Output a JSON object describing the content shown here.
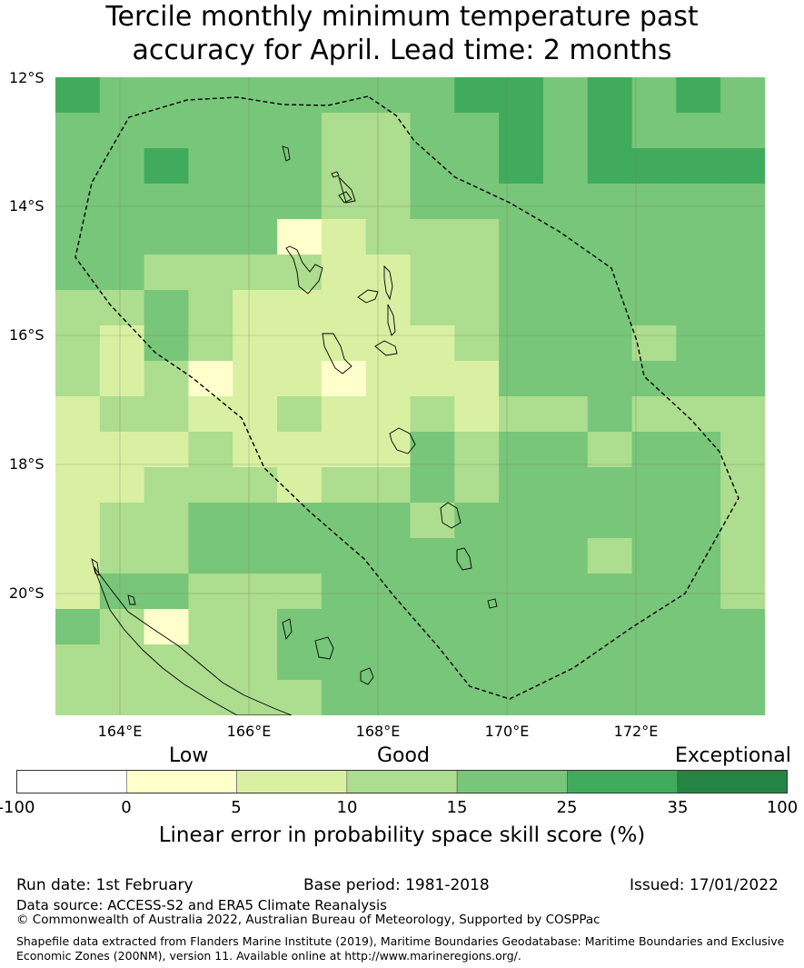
{
  "title_line1": "Tercile monthly minimum temperature past",
  "title_line2": "accuracy for April. Lead time: 2 months",
  "map": {
    "lat_labels": [
      "12°S",
      "14°S",
      "16°S",
      "18°S",
      "20°S"
    ],
    "lon_labels": [
      "164°E",
      "166°E",
      "168°E",
      "170°E",
      "172°E"
    ],
    "grid_skill_pct_approx": [
      [
        35,
        25,
        25,
        25,
        25,
        25,
        25,
        25,
        25,
        35,
        35,
        25,
        35,
        25,
        35,
        25
      ],
      [
        25,
        25,
        25,
        25,
        25,
        25,
        15,
        15,
        25,
        25,
        35,
        25,
        35,
        25,
        25,
        25
      ],
      [
        25,
        25,
        35,
        25,
        25,
        25,
        15,
        15,
        25,
        25,
        35,
        25,
        35,
        35,
        35,
        35
      ],
      [
        25,
        25,
        25,
        25,
        25,
        25,
        15,
        15,
        25,
        25,
        25,
        25,
        25,
        25,
        25,
        25
      ],
      [
        25,
        25,
        25,
        25,
        25,
        5,
        10,
        15,
        15,
        15,
        25,
        25,
        25,
        25,
        25,
        25
      ],
      [
        25,
        25,
        15,
        15,
        15,
        15,
        10,
        10,
        15,
        15,
        25,
        25,
        25,
        25,
        25,
        25
      ],
      [
        15,
        15,
        25,
        15,
        10,
        10,
        10,
        10,
        15,
        15,
        25,
        25,
        25,
        25,
        25,
        25
      ],
      [
        15,
        10,
        25,
        15,
        10,
        10,
        10,
        10,
        10,
        15,
        25,
        25,
        25,
        15,
        25,
        25
      ],
      [
        15,
        10,
        15,
        5,
        10,
        10,
        5,
        10,
        10,
        10,
        25,
        25,
        25,
        25,
        25,
        25
      ],
      [
        10,
        15,
        15,
        10,
        10,
        15,
        10,
        10,
        15,
        10,
        15,
        15,
        25,
        15,
        15,
        15
      ],
      [
        10,
        10,
        10,
        15,
        10,
        10,
        10,
        10,
        25,
        15,
        25,
        25,
        15,
        25,
        25,
        15
      ],
      [
        10,
        10,
        15,
        15,
        15,
        10,
        15,
        15,
        25,
        15,
        25,
        25,
        25,
        25,
        25,
        15
      ],
      [
        10,
        15,
        15,
        25,
        25,
        25,
        25,
        25,
        15,
        25,
        25,
        25,
        25,
        25,
        25,
        15
      ],
      [
        10,
        15,
        15,
        25,
        25,
        25,
        25,
        25,
        25,
        25,
        25,
        25,
        15,
        25,
        25,
        15
      ],
      [
        10,
        25,
        25,
        15,
        15,
        15,
        25,
        25,
        25,
        25,
        25,
        25,
        25,
        25,
        25,
        15
      ],
      [
        25,
        15,
        5,
        15,
        15,
        25,
        25,
        25,
        25,
        25,
        25,
        25,
        25,
        25,
        25,
        25
      ],
      [
        15,
        15,
        15,
        15,
        15,
        25,
        25,
        25,
        25,
        25,
        25,
        25,
        25,
        25,
        25,
        25
      ],
      [
        15,
        15,
        15,
        15,
        15,
        15,
        25,
        25,
        25,
        25,
        25,
        25,
        25,
        25,
        25,
        25
      ]
    ]
  },
  "legend": {
    "categories": [
      "Low",
      "Good",
      "Exceptional"
    ],
    "ticks": [
      "-100",
      "0",
      "5",
      "10",
      "15",
      "25",
      "35",
      "100"
    ],
    "colors": [
      "#ffffff",
      "#ffffcc",
      "#d9f0a3",
      "#addd8e",
      "#78c679",
      "#41ab5d",
      "#238443"
    ],
    "title": "Linear error in probability space skill score (%)"
  },
  "footer": {
    "run_date": "Run date: 1st February",
    "base_period": "Base period: 1981-2018",
    "issued": "Issued: 17/01/2022",
    "data_source": "Data source: ACCESS-S2 and ERA5 Climate Reanalysis",
    "copyright": "© Commonwealth of Australia 2022, Australian Bureau of Meteorology, Supported by COSPPac",
    "shapefile_line1": "Shapefile data extracted from Flanders Marine Institute (2019), Maritime Boundaries Geodatabase: Maritime Boundaries and Exclusive",
    "shapefile_line2": "Economic Zones (200NM), version 11. Available online at http://www.marineregions.org/."
  }
}
